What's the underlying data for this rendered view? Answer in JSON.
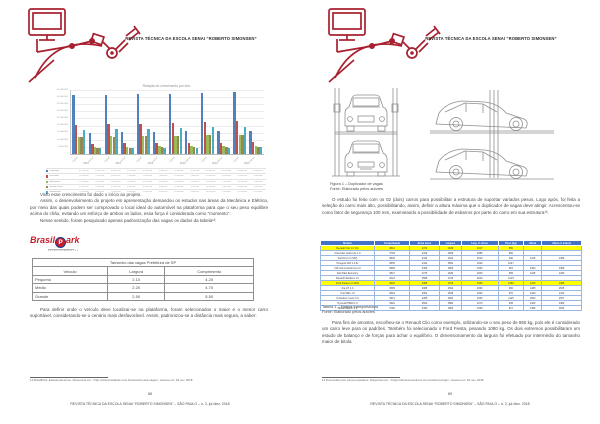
{
  "header": {
    "journal_title": "REVISTA TÉCNICA DA ESCOLA SENAI “ROBERTO SIMONSEN”"
  },
  "footer": {
    "text": "REVISTA TÉCNICA DA ESCOLA SENAI “ROBERTO SIMONSEN” – SÃO PAULO – n. 2, jul./dez. 2018",
    "left_page_number": "88",
    "right_page_number": "89"
  },
  "left_page": {
    "paragraph_1": "Visto esse crescimento foi dado o início ao projeto.",
    "paragraph_2": "Assim, o desenvolvimento do projeto em apresentação demandou os estudos nas áreas da Mecânica e Elétrica, por meio das quais podem ser comprovado o local ideal do automóvel na plataforma para que o seu peso equilibre acima do chão, evitando um esforço de ambos os lados, essa força é considerada como “momento”.",
    "paragraph_3": "Nesse sentido, foram pesquisado apenas padronização das vagas os dados da tabela¹²:",
    "paragraph_4": "Para definir onde o veículo deve localizar-se na plataforma, foram selecionados o maior e o menor carro suportável, considerando-se o cenário mais desfavorável. Assim, padronizou-se a distância mais segura, a saber:",
    "brasilpark": {
      "brand_prefix": "Brasil",
      "brand_circle_letter": "P",
      "brand_suffix": "ark",
      "subtitle": "ESTACIONAMENTOS"
    },
    "vagas_table": {
      "title": "Tamanho das vagas Prefeitura de SP",
      "headers": [
        "Veículo",
        "Largura",
        "Comprimento"
      ],
      "rows": [
        [
          "Pequeno",
          "2.10",
          "4.20"
        ],
        [
          "Médio",
          "2.20",
          "4.70"
        ],
        [
          "Grande",
          "2.50",
          "5.50"
        ]
      ]
    },
    "footnote": "12 BrasilPark. Estacionamentos. Disponível em: <http://www.brasilpark.com.br/tamanho-das-vagas>. Acesso em: 04 nov. 2018."
  },
  "right_page": {
    "figure_caption": "Figura 1 – Duplicador de vagas",
    "figure_source": "Fonte: Elaborado pelos autores",
    "paragraph_1": "O estudo foi feito com os 02 (dois) carros para possibilitar a estrutura de suportar variados pesos. Logo após, foi feita a seleção do carro mais alto, possibilitando, assim, definir a altura máxima que o duplicador de vagas deve atingir. Acrescentou-se como fator de segurança 100 mm, examinando a possibilidade de esbarros por parte do carro em sua estrutura¹³.",
    "table_caption": "Tabela 1 – Esteira transportadora",
    "table_source": "Fonte: Elaborado pelos autores",
    "paragraph_2": "Para fins de amostra, escolheu-se o Renault Clio como exemplo, utilizando-se o seu peso de 850 kg, pois ele é considerado um carro leve para os padrões. Também foi selecionado o Ford Fiesta, pesando 1080 kg. Os dois extremos possibilitaram um estudo de balanço e de forças para achar o equilíbrio. O dimensionamento da largura foi efetuado por intermédio do tamanho maior de bitola",
    "cars_table": {
      "header_color": "#4472c4",
      "highlight_color": "#ffff00",
      "headers": [
        "Modelo",
        "Comprimento",
        "Entre eixos",
        "Largura",
        "Larg. c/ retrov.",
        "Peso (kg)",
        "Altura",
        "Altura c/ antena"
      ],
      "rows": [
        {
          "cells": [
            "Renault Clio 1.0 16v",
            "3810",
            "2472",
            "1639",
            "1917",
            "850",
            "",
            ""
          ],
          "highlight": true
        },
        {
          "cells": [
            "Chevrolet Celta Life 1.0",
            "3748",
            "2443",
            "1608",
            "1880",
            "860",
            "",
            ""
          ],
          "highlight": false
        },
        {
          "cells": [
            "Ford Ka 1.0 (S/D)",
            "3836",
            "2434",
            "1644",
            "1910",
            "940",
            "1415",
            "1480"
          ],
          "highlight": false
        },
        {
          "cells": [
            "Peugeot 206 1.4 8v",
            "3835",
            "2442",
            "1652",
            "1920",
            "1047",
            "",
            ""
          ],
          "highlight": false
        },
        {
          "cells": [
            "VW Gol (novíssimo) 1.0",
            "3899",
            "2465",
            "1656",
            "1940",
            "951",
            "1463",
            "1480"
          ],
          "highlight": false
        },
        {
          "cells": [
            "Fiat Palio Economy",
            "3827",
            "2373",
            "1636",
            "1900",
            "955",
            "1445",
            "1490"
          ],
          "highlight": false
        },
        {
          "cells": [
            "Renault Sandero 1.0",
            "4024",
            "2588",
            "1746",
            "2000",
            "1015",
            "",
            ""
          ],
          "highlight": false
        },
        {
          "cells": [
            "Ford Fiesta 1.0 2002",
            "3934",
            "2486",
            "1704",
            "1960",
            "1080",
            "1443",
            "1485"
          ],
          "highlight": true
        },
        {
          "cells": [
            "Kia UT 1.0",
            "3595",
            "2385",
            "1594",
            "1860",
            "960",
            "1485",
            "1505"
          ],
          "highlight": false
        },
        {
          "cells": [
            "Uno Mille 1.0",
            "3693",
            "2362",
            "1548",
            "1820",
            "870",
            "1420",
            "1440"
          ],
          "highlight": false
        },
        {
          "cells": [
            "CrossFox mover 1.6",
            "3913",
            "2465",
            "1660",
            "1930",
            "1125",
            "1500",
            "1527"
          ],
          "highlight": false
        },
        {
          "cells": [
            "Hyundai HB20 1.0",
            "3920",
            "2500",
            "1680",
            "1970",
            "945",
            "1460",
            "1480"
          ],
          "highlight": false
        },
        {
          "cells": [
            "Nissan March 1.0",
            "3780",
            "2450",
            "1665",
            "1945",
            "917",
            "1495",
            "1520"
          ],
          "highlight": false
        }
      ]
    },
    "footnote": "13 Dimensões dos carros populares. Disponível em: <https://dimensoescarros.com.br/carros-hoje/>. Acesso em: 04 nov. 2018."
  },
  "chart_data": {
    "type": "bar",
    "title": "Relação do crescimento por Ano",
    "years": [
      "2010",
      "2011",
      "2012",
      "2013",
      "2014",
      "2015"
    ],
    "subcategories": [
      "Capital",
      "Interior"
    ],
    "unit": "milhões",
    "ylim": [
      0,
      45000000
    ],
    "ytick_step": 5000000,
    "grid": true,
    "legend_position": "table-left",
    "series": [
      {
        "name": "População",
        "color": "#4f81bd",
        "values": [
          41.2,
          15.0,
          41.6,
          15.3,
          42.0,
          15.6,
          42.4,
          15.9,
          42.9,
          16.2,
          43.6,
          16.5
        ]
      },
      {
        "name": "Frota total",
        "color": "#c0504d",
        "values": [
          20.5,
          7.2,
          20.9,
          7.4,
          21.3,
          7.6,
          21.8,
          7.8,
          22.3,
          8.0,
          22.9,
          8.3
        ]
      },
      {
        "name": "Automóveis",
        "color": "#9bbb59",
        "values": [
          12.1,
          5.1,
          12.4,
          5.2,
          12.7,
          5.4,
          13.0,
          5.5,
          13.3,
          5.7,
          13.7,
          5.9
        ]
      },
      {
        "name": "Veículos leves",
        "color": "#938953",
        "values": [
          12.0,
          4.3,
          12.2,
          4.4,
          12.5,
          4.6,
          12.8,
          4.7,
          13.1,
          4.9,
          13.4,
          5.0
        ]
      },
      {
        "name": "Motocicletas",
        "color": "#4bacc6",
        "values": [
          17.0,
          4.0,
          17.4,
          4.1,
          17.8,
          4.2,
          18.2,
          4.4,
          18.7,
          4.5,
          19.2,
          4.7
        ]
      }
    ]
  }
}
